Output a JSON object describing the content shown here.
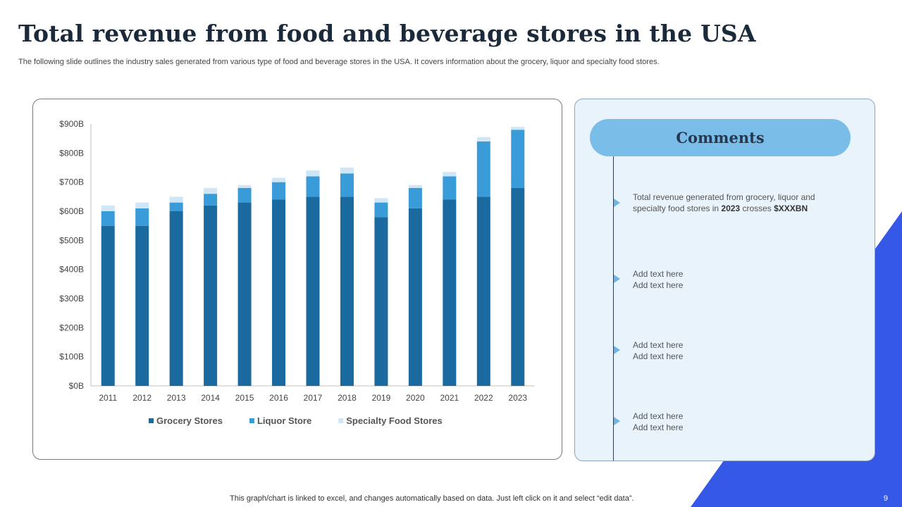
{
  "page": {
    "title": "Total revenue from food and beverage stores in the USA",
    "subtitle": "The following slide outlines the industry sales generated from various type of food and beverage stores in the USA.  It covers information about the grocery, liquor and specialty food stores.",
    "footer": "This graph/chart is linked to excel,  and changes automatically based on data. Just left click on it and select “edit data”.",
    "page_number": "9"
  },
  "colors": {
    "grocery": "#1a6aa0",
    "liquor": "#3a9bd9",
    "specialty": "#cfe6f6",
    "accent": "#3558e6"
  },
  "comments": {
    "header": "Comments",
    "items": [
      {
        "pre": "Total revenue  generated from grocery, liquor and specialty food  stores in ",
        "year": "2023",
        "mid": " crosses ",
        "amount": "$XXXBN"
      },
      {
        "line1": "Add text here",
        "line2": "Add text here"
      },
      {
        "line1": "Add text here",
        "line2": "Add text here"
      },
      {
        "line1": "Add text here",
        "line2": "Add text here"
      }
    ]
  },
  "chart_data": {
    "type": "bar",
    "stacked": true,
    "title": "",
    "xlabel": "",
    "ylabel": "",
    "ylim": [
      0,
      900
    ],
    "yticks": [
      0,
      100,
      200,
      300,
      400,
      500,
      600,
      700,
      800,
      900
    ],
    "ytick_labels": [
      "$0B",
      "$100B",
      "$200B",
      "$300B",
      "$400B",
      "$500B",
      "$600B",
      "$700B",
      "$800B",
      "$900B"
    ],
    "categories": [
      "2011",
      "2012",
      "2013",
      "2014",
      "2015",
      "2016",
      "2017",
      "2018",
      "2019",
      "2020",
      "2021",
      "2022",
      "2023"
    ],
    "series": [
      {
        "name": "Grocery Stores",
        "values": [
          550,
          550,
          600,
          620,
          630,
          640,
          650,
          650,
          580,
          610,
          640,
          650,
          680
        ]
      },
      {
        "name": "Liquor Store",
        "values": [
          50,
          60,
          30,
          40,
          50,
          60,
          70,
          80,
          50,
          70,
          80,
          190,
          200
        ]
      },
      {
        "name": "Specialty Food Stores",
        "values": [
          20,
          20,
          20,
          20,
          10,
          15,
          20,
          20,
          15,
          10,
          15,
          15,
          10
        ]
      }
    ],
    "legend_position": "bottom"
  }
}
